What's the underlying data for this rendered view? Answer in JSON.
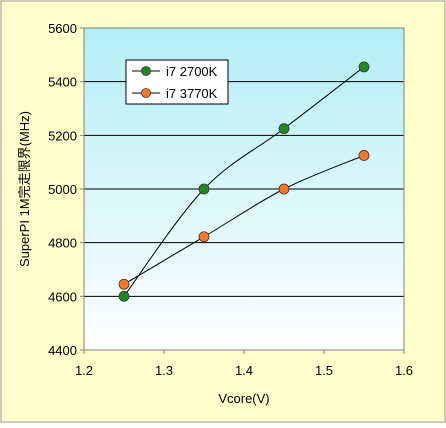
{
  "colors": {
    "outer_background": "#ffffcc",
    "plot_gradient_top": "#b2eef5",
    "plot_gradient_bottom": "#ffffff",
    "gridline": "#000000",
    "series_line": "#000000",
    "legend_background": "#ffffff"
  },
  "chart_data": {
    "type": "line",
    "title": "",
    "xlabel": "Vcore(V)",
    "ylabel": "SuperPI 1M完走限界(MHz)",
    "xlim": [
      1.2,
      1.6
    ],
    "ylim": [
      4400,
      5600
    ],
    "x_ticks": [
      1.2,
      1.3,
      1.4,
      1.5,
      1.6
    ],
    "x_tick_labels": [
      "1.2",
      "1.3",
      "1.4",
      "1.5",
      "1.6"
    ],
    "y_ticks": [
      4400,
      4600,
      4800,
      5000,
      5200,
      5400,
      5600
    ],
    "y_tick_labels": [
      "4400",
      "4600",
      "4800",
      "5000",
      "5200",
      "5400",
      "5600"
    ],
    "grid": "horizontal",
    "legend_position": "top-left",
    "smooth": true,
    "series": [
      {
        "name": "i7 2700K",
        "marker_color": "#228822",
        "points": [
          {
            "x": 1.25,
            "y": 4600
          },
          {
            "x": 1.35,
            "y": 5000
          },
          {
            "x": 1.45,
            "y": 5225
          },
          {
            "x": 1.55,
            "y": 5455
          }
        ]
      },
      {
        "name": "i7 3770K",
        "marker_color": "#ff7722",
        "points": [
          {
            "x": 1.25,
            "y": 4645
          },
          {
            "x": 1.35,
            "y": 4822
          },
          {
            "x": 1.45,
            "y": 5000
          },
          {
            "x": 1.55,
            "y": 5125
          }
        ]
      }
    ]
  }
}
